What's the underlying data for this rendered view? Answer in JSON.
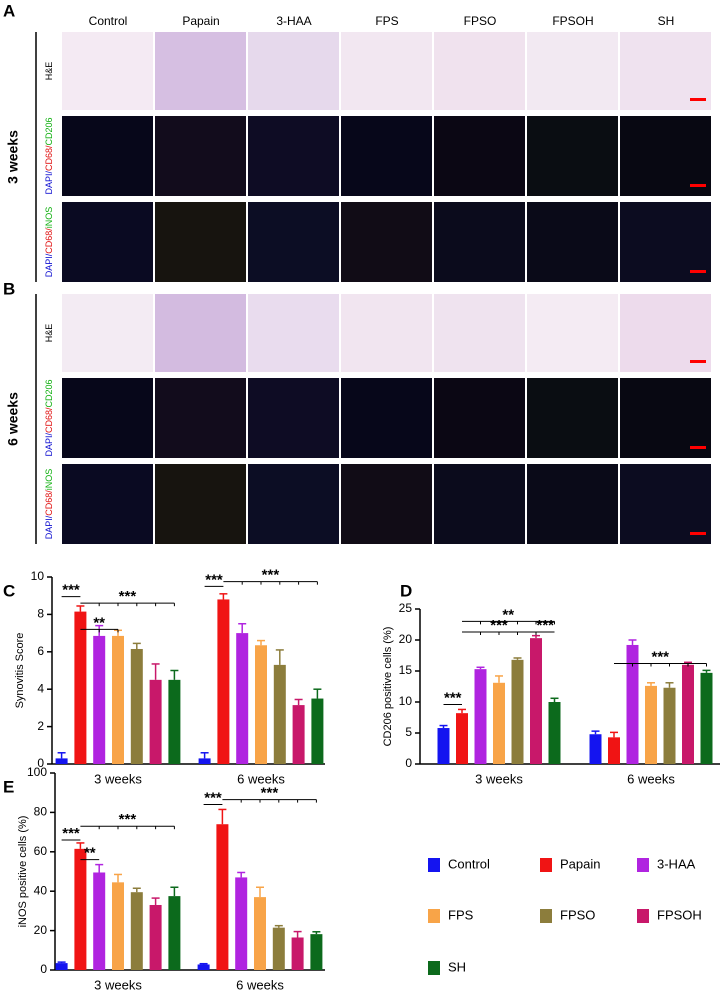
{
  "figure": {
    "panels": [
      "A",
      "B",
      "C",
      "D",
      "E"
    ],
    "columns": [
      "Control",
      "Papain",
      "3-HAA",
      "FPS",
      "FPSO",
      "FPSOH",
      "SH"
    ],
    "timepoints": [
      "3 weeks",
      "6 weeks"
    ],
    "rows": [
      {
        "parts": [
          "H&E"
        ],
        "colors": [
          "#000000"
        ]
      },
      {
        "parts": [
          "DAPI/",
          "CD68/",
          "CD206"
        ],
        "colors": [
          "#1010d0",
          "#e01010",
          "#10b010"
        ]
      },
      {
        "parts": [
          "DAPI/",
          "CD68/",
          "iNOS"
        ],
        "colors": [
          "#1010d0",
          "#e01010",
          "#10b010"
        ]
      }
    ]
  },
  "chart_data": [
    {
      "type": "bar",
      "ylabel": "Synovitis Score",
      "categories": [
        "3 weeks",
        "6 weeks"
      ],
      "ylim": [
        0,
        10
      ],
      "yticks": [
        0,
        2,
        4,
        6,
        8,
        10
      ],
      "series": [
        {
          "name": "Control",
          "color": "#1414f0",
          "values": [
            0.3,
            0.3
          ],
          "errors": [
            0.3,
            0.3
          ]
        },
        {
          "name": "Papain",
          "color": "#f01414",
          "values": [
            8.15,
            8.8
          ],
          "errors": [
            0.3,
            0.3
          ]
        },
        {
          "name": "3-HAA",
          "color": "#b024e0",
          "values": [
            6.85,
            7.0
          ],
          "errors": [
            0.55,
            0.5
          ]
        },
        {
          "name": "FPS",
          "color": "#f8a448",
          "values": [
            6.85,
            6.35
          ],
          "errors": [
            0.3,
            0.25
          ]
        },
        {
          "name": "FPSO",
          "color": "#8c7d3c",
          "values": [
            6.15,
            5.3
          ],
          "errors": [
            0.3,
            0.8
          ]
        },
        {
          "name": "FPSOH",
          "color": "#c8186a",
          "values": [
            4.5,
            3.15
          ],
          "errors": [
            0.85,
            0.3
          ]
        },
        {
          "name": "SH",
          "color": "#0c6a1c",
          "values": [
            4.5,
            3.5
          ],
          "errors": [
            0.5,
            0.5
          ]
        }
      ],
      "annotations": [
        "***",
        "**",
        "***",
        "***",
        "***"
      ]
    },
    {
      "type": "bar",
      "ylabel": "CD206 positive cells (%)",
      "categories": [
        "3 weeks",
        "6 weeks"
      ],
      "ylim": [
        0,
        25
      ],
      "yticks": [
        0,
        5,
        10,
        15,
        20,
        25
      ],
      "series": [
        {
          "color": "#1414f0",
          "values": [
            5.8,
            4.8
          ],
          "errors": [
            0.4,
            0.5
          ]
        },
        {
          "color": "#f01414",
          "values": [
            8.2,
            4.3
          ],
          "errors": [
            0.6,
            0.8
          ]
        },
        {
          "color": "#b024e0",
          "values": [
            15.3,
            19.2
          ],
          "errors": [
            0.3,
            0.8
          ]
        },
        {
          "color": "#f8a448",
          "values": [
            13.1,
            12.6
          ],
          "errors": [
            1.1,
            0.5
          ]
        },
        {
          "color": "#8c7d3c",
          "values": [
            16.8,
            12.3
          ],
          "errors": [
            0.3,
            0.8
          ]
        },
        {
          "color": "#c8186a",
          "values": [
            20.3,
            16.0
          ],
          "errors": [
            0.4,
            0.4
          ]
        },
        {
          "color": "#0c6a1c",
          "values": [
            10.0,
            14.7
          ],
          "errors": [
            0.6,
            0.4
          ]
        }
      ],
      "annotations": [
        "***",
        "**",
        "***",
        "***",
        "***"
      ]
    },
    {
      "type": "bar",
      "ylabel": "iNOS positive cells (%)",
      "categories": [
        "3 weeks",
        "6 weeks"
      ],
      "ylim": [
        0,
        100
      ],
      "yticks": [
        0,
        20,
        40,
        60,
        80,
        100
      ],
      "series": [
        {
          "color": "#1414f0",
          "values": [
            3.5,
            2.8
          ],
          "errors": [
            0.5,
            0.4
          ]
        },
        {
          "color": "#f01414",
          "values": [
            61.5,
            74
          ],
          "errors": [
            3,
            7.5
          ]
        },
        {
          "color": "#b024e0",
          "values": [
            49.5,
            47
          ],
          "errors": [
            4,
            2.5
          ]
        },
        {
          "color": "#f8a448",
          "values": [
            44.5,
            37
          ],
          "errors": [
            4,
            5
          ]
        },
        {
          "color": "#8c7d3c",
          "values": [
            39.5,
            21.5
          ],
          "errors": [
            2,
            1
          ]
        },
        {
          "color": "#c8186a",
          "values": [
            33,
            16.5
          ],
          "errors": [
            3.5,
            3
          ]
        },
        {
          "color": "#0c6a1c",
          "values": [
            37.5,
            18.2
          ],
          "errors": [
            4.5,
            1.2
          ]
        }
      ],
      "annotations": [
        "***",
        "**",
        "***",
        "***",
        "***"
      ]
    }
  ]
}
